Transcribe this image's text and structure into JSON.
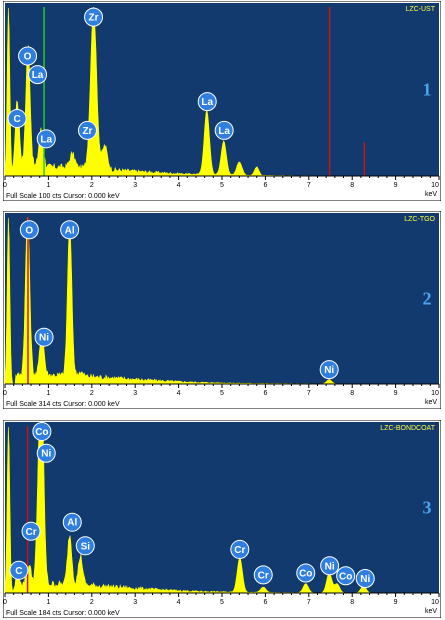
{
  "chart_data": [
    {
      "type": "area",
      "sample_label": "LZC-UST",
      "panel_number": "1",
      "footer": "Full Scale 100 cts  Cursor: 0.000 keV",
      "xunit": "keV",
      "xlim": [
        0,
        10
      ],
      "x_ticks": [
        "0",
        "1",
        "2",
        "3",
        "4",
        "5",
        "6",
        "7",
        "8",
        "9",
        "10"
      ],
      "ylim": [
        0,
        100
      ],
      "spectrum_color": "#ffff00",
      "peaks": [
        {
          "x": 0.08,
          "y": 100,
          "w": 0.03
        },
        {
          "x": 0.28,
          "y": 40,
          "w": 0.05
        },
        {
          "x": 0.53,
          "y": 72,
          "w": 0.05
        },
        {
          "x": 0.83,
          "y": 22,
          "w": 0.05
        },
        {
          "x": 1.55,
          "y": 8,
          "w": 0.06
        },
        {
          "x": 2.04,
          "y": 95,
          "w": 0.07
        },
        {
          "x": 2.3,
          "y": 14,
          "w": 0.06
        },
        {
          "x": 4.65,
          "y": 38,
          "w": 0.06
        },
        {
          "x": 5.04,
          "y": 20,
          "w": 0.06
        },
        {
          "x": 5.4,
          "y": 8,
          "w": 0.06
        },
        {
          "x": 5.8,
          "y": 5,
          "w": 0.05
        }
      ],
      "markers": [
        {
          "x": 0.9,
          "color": "#22cc22",
          "height": 100
        },
        {
          "x": 7.48,
          "color": "#cc1111",
          "height": 100
        },
        {
          "x": 8.28,
          "color": "#cc1111",
          "height": 20
        }
      ],
      "labels": [
        {
          "text": "Zr",
          "x": 2.04,
          "y": 94
        },
        {
          "text": "O",
          "x": 0.52,
          "y": 71
        },
        {
          "text": "La",
          "x": 0.75,
          "y": 60
        },
        {
          "text": "C",
          "x": 0.28,
          "y": 34
        },
        {
          "text": "La",
          "x": 0.95,
          "y": 22
        },
        {
          "text": "Zr",
          "x": 1.9,
          "y": 27
        },
        {
          "text": "La",
          "x": 4.66,
          "y": 44
        },
        {
          "text": "La",
          "x": 5.05,
          "y": 27
        }
      ]
    },
    {
      "type": "area",
      "sample_label": "LZC-TGO",
      "panel_number": "2",
      "footer": "Full Scale 314 cts  Cursor: 0.000 keV",
      "xunit": "keV",
      "xlim": [
        0,
        10
      ],
      "x_ticks": [
        "0",
        "1",
        "2",
        "3",
        "4",
        "5",
        "6",
        "7",
        "8",
        "9",
        "10"
      ],
      "ylim": [
        0,
        314
      ],
      "spectrum_color": "#ffff00",
      "peaks": [
        {
          "x": 0.08,
          "y": 314,
          "w": 0.03
        },
        {
          "x": 0.52,
          "y": 300,
          "w": 0.05
        },
        {
          "x": 0.85,
          "y": 80,
          "w": 0.05
        },
        {
          "x": 1.49,
          "y": 282,
          "w": 0.05
        },
        {
          "x": 1.74,
          "y": 8,
          "w": 0.05
        },
        {
          "x": 7.47,
          "y": 8,
          "w": 0.06
        }
      ],
      "markers": [
        {
          "x": 0.53,
          "color": "#cc1111",
          "height": 314
        }
      ],
      "labels": [
        {
          "text": "O",
          "x": 0.56,
          "y": 290
        },
        {
          "text": "Al",
          "x": 1.49,
          "y": 290
        },
        {
          "text": "Ni",
          "x": 0.9,
          "y": 88
        },
        {
          "text": "Ni",
          "x": 7.47,
          "y": 27
        }
      ]
    },
    {
      "type": "area",
      "sample_label": "LZC-BONDCOAT",
      "panel_number": "3",
      "footer": "Full Scale 184 cts  Cursor: 0.000 keV",
      "xunit": "keV",
      "xlim": [
        0,
        10
      ],
      "x_ticks": [
        "0",
        "1",
        "2",
        "3",
        "4",
        "5",
        "6",
        "7",
        "8",
        "9",
        "10"
      ],
      "ylim": [
        0,
        184
      ],
      "spectrum_color": "#ffff00",
      "peaks": [
        {
          "x": 0.08,
          "y": 184,
          "w": 0.03
        },
        {
          "x": 0.28,
          "y": 14,
          "w": 0.05
        },
        {
          "x": 0.55,
          "y": 22,
          "w": 0.05
        },
        {
          "x": 0.78,
          "y": 100,
          "w": 0.05
        },
        {
          "x": 0.85,
          "y": 184,
          "w": 0.05
        },
        {
          "x": 1.49,
          "y": 55,
          "w": 0.05
        },
        {
          "x": 1.74,
          "y": 32,
          "w": 0.05
        },
        {
          "x": 5.41,
          "y": 38,
          "w": 0.06
        },
        {
          "x": 5.95,
          "y": 6,
          "w": 0.06
        },
        {
          "x": 6.93,
          "y": 10,
          "w": 0.06
        },
        {
          "x": 7.47,
          "y": 22,
          "w": 0.06
        },
        {
          "x": 7.65,
          "y": 10,
          "w": 0.06
        },
        {
          "x": 8.26,
          "y": 8,
          "w": 0.06
        }
      ],
      "markers": [
        {
          "x": 0.52,
          "color": "#cc1111",
          "height": 184
        }
      ],
      "labels": [
        {
          "text": "Co",
          "x": 0.85,
          "y": 178
        },
        {
          "text": "Ni",
          "x": 0.95,
          "y": 154
        },
        {
          "text": "Cr",
          "x": 0.6,
          "y": 68
        },
        {
          "text": "Al",
          "x": 1.55,
          "y": 78
        },
        {
          "text": "Si",
          "x": 1.85,
          "y": 52
        },
        {
          "text": "C",
          "x": 0.32,
          "y": 25
        },
        {
          "text": "Cr",
          "x": 5.41,
          "y": 48
        },
        {
          "text": "Cr",
          "x": 5.95,
          "y": 20
        },
        {
          "text": "Co",
          "x": 6.93,
          "y": 22
        },
        {
          "text": "Ni",
          "x": 7.48,
          "y": 30
        },
        {
          "text": "Co",
          "x": 7.85,
          "y": 19
        },
        {
          "text": "Ni",
          "x": 8.3,
          "y": 16
        }
      ]
    }
  ]
}
